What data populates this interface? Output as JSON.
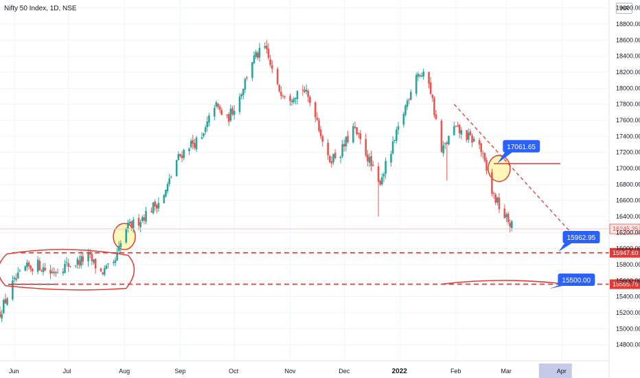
{
  "header": {
    "title": "Nifty 50 Index, 1D, NSE",
    "currency": "INR"
  },
  "colors": {
    "up": "#26a69a",
    "down": "#ef5350",
    "drawing": "#e53935",
    "callout": "#2962ff",
    "highlight_fill": "#fff59d",
    "last_price": "#ef5350",
    "month_highlight": "#c5cae9"
  },
  "chart_data": {
    "type": "candlestick",
    "title": "Nifty 50 Index, 1D, NSE",
    "ylim": [
      14600,
      19100
    ],
    "y_ticks": [
      14800,
      15000,
      15200,
      15400,
      15600,
      15800,
      16000,
      16200,
      16400,
      16600,
      16800,
      17000,
      17200,
      17400,
      17600,
      17800,
      18000,
      18200,
      18400,
      18600,
      18800,
      19000
    ],
    "y_tick_labels": [
      "14800.00",
      "15000.00",
      "15200.00",
      "15400.00",
      "15600.00",
      "15800.00",
      "16000.00",
      "16200.00",
      "16400.00",
      "16600.00",
      "16800.00",
      "17000.00",
      "17200.00",
      "17400.00",
      "17600.00",
      "17800.00",
      "18000.00",
      "18200.00",
      "18400.00",
      "18600.00",
      "18800.00",
      "19000.00"
    ],
    "x_labels": [
      "Jun",
      "Jul",
      "Aug",
      "Sep",
      "Oct",
      "Nov",
      "Dec",
      "2022",
      "Feb",
      "Mar",
      "Apr"
    ],
    "x_label_dates": [
      "2021-06-01",
      "2021-07-01",
      "2021-08-01",
      "2021-09-01",
      "2021-10-01",
      "2021-11-01",
      "2021-12-01",
      "2022-01-01",
      "2022-02-01",
      "2022-03-01",
      "2022-04-01"
    ],
    "bold_labels": [
      "2022"
    ],
    "x_range": [
      "2021-05-24",
      "2022-04-27"
    ],
    "highlight_x_label": "Apr",
    "price_path": [
      [
        "2021-05-24",
        15200
      ],
      [
        "2021-05-31",
        15550
      ],
      [
        "2021-06-07",
        15750
      ],
      [
        "2021-06-14",
        15800
      ],
      [
        "2021-06-21",
        15700
      ],
      [
        "2021-06-28",
        15780
      ],
      [
        "2021-07-05",
        15820
      ],
      [
        "2021-07-12",
        15900
      ],
      [
        "2021-07-19",
        15700
      ],
      [
        "2021-07-26",
        15780
      ],
      [
        "2021-08-02",
        16250
      ],
      [
        "2021-08-09",
        16350
      ],
      [
        "2021-08-16",
        16500
      ],
      [
        "2021-08-23",
        16650
      ],
      [
        "2021-08-30",
        17100
      ],
      [
        "2021-09-06",
        17300
      ],
      [
        "2021-09-13",
        17350
      ],
      [
        "2021-09-20",
        17800
      ],
      [
        "2021-09-27",
        17600
      ],
      [
        "2021-10-04",
        17900
      ],
      [
        "2021-10-11",
        18350
      ],
      [
        "2021-10-18",
        18500
      ],
      [
        "2021-10-25",
        18000
      ],
      [
        "2021-11-01",
        17900
      ],
      [
        "2021-11-08",
        18000
      ],
      [
        "2021-11-15",
        17700
      ],
      [
        "2021-11-22",
        17100
      ],
      [
        "2021-11-29",
        17200
      ],
      [
        "2021-12-06",
        17500
      ],
      [
        "2021-12-13",
        17200
      ],
      [
        "2021-12-20",
        16800
      ],
      [
        "2021-12-27",
        17200
      ],
      [
        "2022-01-03",
        17700
      ],
      [
        "2022-01-10",
        18200
      ],
      [
        "2022-01-17",
        18100
      ],
      [
        "2022-01-24",
        17200
      ],
      [
        "2022-01-31",
        17500
      ],
      [
        "2022-02-07",
        17400
      ],
      [
        "2022-02-14",
        17300
      ],
      [
        "2022-02-21",
        16700
      ],
      [
        "2022-02-28",
        16400
      ],
      [
        "2022-03-07",
        16200
      ]
    ],
    "extremes": {
      "high_oct": [
        "2021-10-19",
        18600
      ],
      "low_dec": [
        "2021-12-20",
        16400
      ],
      "low_jan": [
        "2022-01-27",
        16850
      ],
      "low_mar": [
        "2022-03-07",
        16150
      ]
    },
    "horizontal_levels": [
      {
        "value": 15947.6,
        "label": "15947.60",
        "style": "dashed"
      },
      {
        "value": 15555.75,
        "label": "15555.75",
        "style": "dashed"
      }
    ],
    "last_price": {
      "value": 16245.35,
      "label": "16245.35"
    },
    "callouts": [
      {
        "label": "17061.65",
        "date": "2022-02-24",
        "value": 17061.65
      },
      {
        "label": "15962.95",
        "date": "2022-03-30",
        "value": 15962.95
      },
      {
        "label": "15500.00",
        "date": "2022-03-25",
        "value": 15500.0
      }
    ],
    "trendline": {
      "from": [
        "2022-01-31",
        17800
      ],
      "to": [
        "2022-04-05",
        16220
      ]
    },
    "resistance_segment": {
      "from": [
        "2022-02-22",
        17060
      ],
      "to": [
        "2022-03-31",
        17060
      ]
    },
    "support_segment": {
      "from": [
        "2022-01-25",
        15560
      ],
      "to": [
        "2022-04-02",
        15560
      ]
    },
    "box_range": {
      "from": [
        "2021-05-24",
        15950
      ],
      "to": [
        "2021-08-05",
        15520
      ]
    },
    "circles": [
      {
        "date": "2021-08-01",
        "value": 16150,
        "filled": true
      },
      {
        "date": "2022-02-25",
        "value": 17000,
        "filled": true
      }
    ]
  }
}
